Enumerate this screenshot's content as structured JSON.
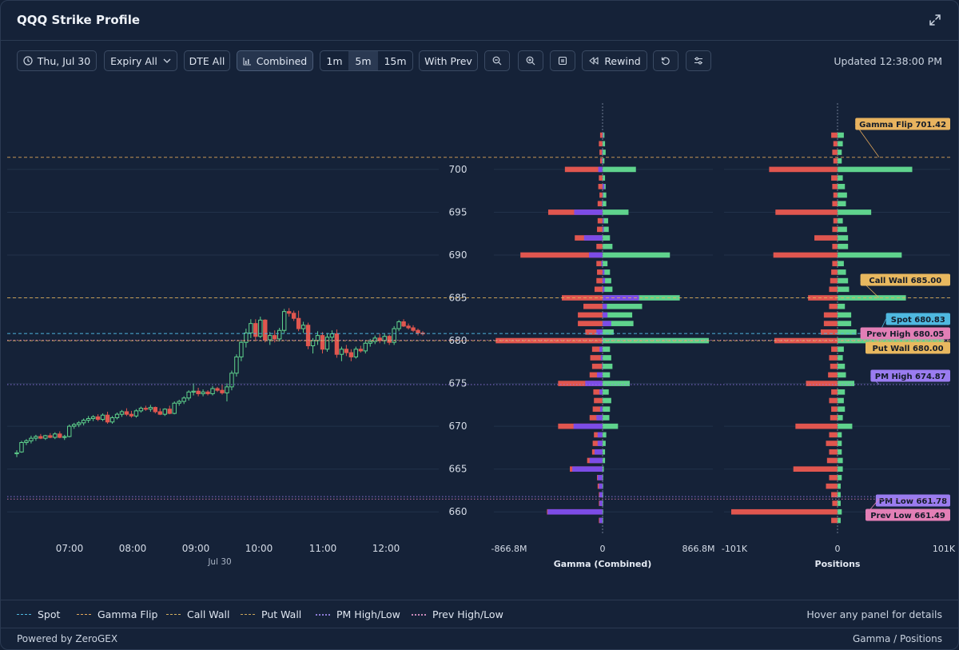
{
  "app": {
    "title": "QQQ Strike Profile"
  },
  "toolbar": {
    "date_label": "Thu, Jul 30",
    "expiry_label": "Expiry All",
    "dte_label": "DTE All",
    "combined_label": "Combined",
    "intervals": [
      "1m",
      "5m",
      "15m"
    ],
    "selected_interval": "5m",
    "with_prev_label": "With Prev",
    "rewind_label": "Rewind",
    "updated_label": "Updated 12:38:00 PM"
  },
  "colors": {
    "background": "#152238",
    "bull": "#5fd38d",
    "bear": "#e0564f",
    "combined": "#7c4ce6",
    "spot": "#4fb8e0",
    "gamma_flip": "#e4a85a",
    "call_wall": "#e4b35a",
    "put_wall": "#e4b35a",
    "pm": "#9a7cf0",
    "prev": "#e27fb6"
  },
  "chart_data": [
    {
      "type": "candlestick",
      "x_ticks": [
        "07:00",
        "08:00",
        "09:00",
        "10:00",
        "11:00",
        "12:00"
      ],
      "x_sublabel": "Jul 30",
      "ylim": [
        657.5,
        705.5
      ],
      "y_ticks": [
        700,
        695,
        690,
        685,
        680,
        675,
        670,
        665,
        660
      ],
      "candles": [
        [
          666.8,
          667.2,
          666.4,
          666.9
        ],
        [
          667.0,
          668.3,
          666.9,
          668.1
        ],
        [
          668.1,
          668.5,
          667.8,
          668.3
        ],
        [
          668.3,
          668.9,
          668.0,
          668.6
        ],
        [
          668.6,
          669.0,
          668.3,
          668.8
        ],
        [
          668.8,
          669.1,
          668.5,
          668.6
        ],
        [
          668.6,
          669.0,
          668.4,
          668.9
        ],
        [
          668.9,
          669.2,
          668.6,
          668.7
        ],
        [
          668.7,
          669.3,
          668.5,
          669.1
        ],
        [
          669.1,
          669.4,
          668.6,
          668.7
        ],
        [
          668.7,
          669.0,
          668.4,
          668.8
        ],
        [
          668.8,
          670.2,
          668.7,
          670.0
        ],
        [
          670.0,
          670.4,
          669.7,
          670.2
        ],
        [
          670.2,
          670.6,
          669.9,
          670.4
        ],
        [
          670.4,
          670.9,
          670.1,
          670.7
        ],
        [
          670.7,
          671.2,
          670.4,
          670.9
        ],
        [
          670.9,
          671.3,
          670.6,
          671.1
        ],
        [
          671.1,
          671.4,
          670.6,
          670.8
        ],
        [
          670.8,
          671.5,
          670.6,
          671.3
        ],
        [
          671.3,
          671.7,
          670.3,
          670.5
        ],
        [
          670.5,
          671.2,
          670.3,
          671.0
        ],
        [
          671.0,
          671.6,
          670.8,
          671.4
        ],
        [
          671.4,
          671.9,
          671.1,
          671.7
        ],
        [
          671.7,
          672.1,
          671.2,
          671.4
        ],
        [
          671.4,
          671.8,
          671.0,
          671.2
        ],
        [
          671.2,
          672.0,
          671.0,
          671.8
        ],
        [
          671.8,
          672.3,
          671.6,
          672.1
        ],
        [
          672.1,
          672.4,
          671.8,
          672.0
        ],
        [
          672.0,
          672.5,
          671.7,
          672.2
        ],
        [
          672.2,
          672.3,
          671.5,
          671.7
        ],
        [
          671.7,
          672.1,
          671.3,
          671.4
        ],
        [
          671.4,
          672.1,
          671.2,
          672.0
        ],
        [
          672.0,
          672.4,
          671.4,
          671.5
        ],
        [
          671.5,
          672.9,
          671.4,
          672.7
        ],
        [
          672.7,
          673.1,
          672.4,
          672.9
        ],
        [
          672.9,
          673.5,
          672.6,
          673.3
        ],
        [
          673.3,
          674.2,
          673.0,
          674.0
        ],
        [
          674.0,
          675.0,
          673.6,
          674.1
        ],
        [
          674.1,
          674.5,
          673.5,
          673.8
        ],
        [
          673.8,
          674.3,
          673.5,
          674.0
        ],
        [
          674.0,
          674.2,
          673.6,
          673.8
        ],
        [
          673.8,
          674.7,
          673.6,
          674.4
        ],
        [
          674.4,
          674.6,
          674.0,
          674.2
        ],
        [
          674.2,
          674.9,
          673.7,
          673.9
        ],
        [
          673.9,
          675.0,
          672.9,
          674.6
        ],
        [
          674.6,
          676.5,
          674.2,
          676.2
        ],
        [
          676.2,
          678.4,
          675.8,
          678.1
        ],
        [
          678.1,
          680.0,
          677.6,
          679.8
        ],
        [
          679.8,
          681.4,
          679.2,
          680.9
        ],
        [
          680.9,
          682.5,
          680.3,
          682.0
        ],
        [
          682.0,
          682.5,
          680.0,
          680.5
        ],
        [
          680.5,
          682.8,
          680.3,
          682.4
        ],
        [
          682.4,
          682.5,
          679.8,
          680.1
        ],
        [
          680.1,
          681.0,
          679.5,
          680.6
        ],
        [
          680.6,
          681.2,
          679.8,
          680.2
        ],
        [
          680.2,
          681.5,
          679.9,
          681.2
        ],
        [
          681.2,
          683.7,
          680.9,
          683.4
        ],
        [
          683.4,
          683.8,
          682.8,
          683.2
        ],
        [
          683.2,
          683.5,
          682.3,
          682.6
        ],
        [
          682.6,
          683.5,
          681.1,
          681.4
        ],
        [
          681.4,
          682.2,
          680.9,
          681.8
        ],
        [
          681.8,
          682.1,
          679.0,
          679.4
        ],
        [
          679.4,
          680.3,
          678.5,
          680.0
        ],
        [
          680.0,
          681.1,
          679.5,
          680.6
        ],
        [
          680.6,
          681.0,
          678.5,
          679.0
        ],
        [
          679.0,
          680.9,
          678.7,
          680.4
        ],
        [
          680.4,
          681.2,
          679.8,
          680.8
        ],
        [
          680.8,
          681.3,
          678.0,
          678.4
        ],
        [
          678.4,
          679.3,
          677.6,
          679.0
        ],
        [
          679.0,
          679.5,
          678.2,
          678.6
        ],
        [
          678.6,
          679.0,
          677.6,
          678.1
        ],
        [
          678.1,
          679.3,
          677.9,
          679.0
        ],
        [
          679.0,
          679.4,
          678.6,
          678.8
        ],
        [
          678.8,
          680.0,
          678.5,
          679.7
        ],
        [
          679.7,
          680.2,
          679.3,
          679.9
        ],
        [
          679.9,
          680.6,
          679.6,
          680.3
        ],
        [
          680.3,
          680.8,
          679.7,
          680.0
        ],
        [
          680.0,
          680.8,
          679.6,
          680.5
        ],
        [
          680.5,
          680.7,
          679.5,
          679.8
        ],
        [
          679.8,
          681.7,
          679.5,
          681.4
        ],
        [
          681.4,
          682.4,
          681.1,
          682.2
        ],
        [
          682.2,
          682.5,
          681.6,
          681.7
        ],
        [
          681.7,
          682.0,
          681.3,
          681.5
        ],
        [
          681.5,
          681.8,
          681.0,
          681.2
        ],
        [
          681.2,
          681.4,
          680.6,
          680.9
        ],
        [
          680.9,
          681.1,
          680.6,
          680.83
        ]
      ],
      "levels": [
        {
          "name": "Spot",
          "value": 680.83,
          "label": "Spot 680.83",
          "style": "dashed",
          "color": "#4fb8e0"
        },
        {
          "name": "Gamma Flip",
          "value": 701.42,
          "label": "Gamma Flip 701.42",
          "style": "dashed",
          "color": "#e4a85a"
        },
        {
          "name": "Call Wall",
          "value": 685.0,
          "label": "Call Wall 685.00",
          "style": "dashed",
          "color": "#e4b35a"
        },
        {
          "name": "Put Wall",
          "value": 680.0,
          "label": "Put Wall 680.00",
          "style": "dashed",
          "color": "#e4b35a"
        },
        {
          "name": "PM High",
          "value": 674.87,
          "label": "PM High 674.87",
          "style": "dotted",
          "color": "#9a7cf0"
        },
        {
          "name": "PM Low",
          "value": 661.78,
          "label": "PM Low 661.78",
          "style": "dotted",
          "color": "#9a7cf0"
        },
        {
          "name": "Prev High",
          "value": 680.05,
          "label": "Prev High 680.05",
          "style": "dotted",
          "color": "#e27fb6"
        },
        {
          "name": "Prev Low",
          "value": 661.49,
          "label": "Prev Low 661.49",
          "style": "dotted",
          "color": "#e27fb6"
        }
      ]
    },
    {
      "type": "bar",
      "orientation": "horizontal",
      "xlabel": "Gamma (Combined)",
      "x_ticks": [
        "-866.8M",
        "0",
        "866.8M"
      ],
      "xlim": [
        -866.8,
        866.8
      ],
      "units": "M",
      "strikes": [
        704,
        703,
        702,
        701,
        700,
        699,
        698,
        697,
        696,
        695,
        694,
        693,
        692,
        691,
        690,
        689,
        688,
        687,
        686,
        685,
        684,
        683,
        682,
        681,
        680,
        679,
        678,
        677,
        676,
        675,
        674,
        673,
        672,
        671,
        670,
        669,
        668,
        667,
        666,
        665,
        664,
        663,
        662,
        661,
        660,
        659
      ],
      "call": [
        15,
        20,
        25,
        15,
        270,
        20,
        25,
        30,
        30,
        210,
        45,
        50,
        60,
        80,
        545,
        40,
        60,
        70,
        80,
        625,
        320,
        240,
        250,
        90,
        860,
        60,
        70,
        80,
        60,
        220,
        50,
        70,
        60,
        55,
        125,
        30,
        25,
        20,
        20,
        10,
        5,
        5,
        5,
        5,
        5,
        5
      ],
      "put": [
        -20,
        -30,
        -25,
        -20,
        -305,
        -30,
        -35,
        -25,
        -40,
        -440,
        -40,
        -45,
        -225,
        -50,
        -665,
        -50,
        -45,
        -50,
        -65,
        -330,
        -155,
        -200,
        -200,
        -140,
        -865,
        -85,
        -100,
        -85,
        -105,
        -360,
        -75,
        -70,
        -80,
        -105,
        -360,
        -70,
        -80,
        -85,
        -125,
        -265,
        -45,
        -40,
        -30,
        -30,
        -450,
        -30
      ],
      "net": [
        5,
        0,
        -5,
        -5,
        -35,
        0,
        15,
        5,
        -5,
        -230,
        10,
        10,
        -150,
        0,
        -110,
        -10,
        15,
        20,
        15,
        295,
        35,
        40,
        70,
        -50,
        -5,
        -25,
        -15,
        -5,
        -45,
        -140,
        -25,
        0,
        -20,
        -50,
        -235,
        -40,
        -40,
        -65,
        -105,
        -245,
        -40,
        -30,
        -25,
        -25,
        -445,
        -25
      ]
    },
    {
      "type": "bar",
      "orientation": "horizontal",
      "xlabel": "Positions",
      "x_ticks": [
        "-101K",
        "0",
        "101K"
      ],
      "xlim": [
        -101,
        101
      ],
      "units": "K",
      "strikes": [
        704,
        703,
        702,
        701,
        700,
        699,
        698,
        697,
        696,
        695,
        694,
        693,
        692,
        691,
        690,
        689,
        688,
        687,
        686,
        685,
        684,
        683,
        682,
        681,
        680,
        679,
        678,
        677,
        676,
        675,
        674,
        673,
        672,
        671,
        670,
        669,
        668,
        667,
        666,
        665,
        664,
        663,
        662,
        661,
        660,
        659
      ],
      "call": [
        6,
        5,
        4,
        4,
        71,
        5,
        7,
        9,
        8,
        32,
        5,
        9,
        10,
        10,
        61,
        6,
        8,
        10,
        11,
        65,
        7,
        13,
        13,
        18,
        101,
        6,
        5,
        7,
        8,
        16,
        7,
        6,
        7,
        5,
        14,
        4,
        4,
        4,
        5,
        5,
        4,
        3,
        3,
        3,
        4,
        3
      ],
      "put": [
        -6,
        -4,
        -5,
        -4,
        -65,
        -6,
        -5,
        -4,
        -5,
        -59,
        -4,
        -5,
        -22,
        -5,
        -61,
        -5,
        -6,
        -7,
        -8,
        -28,
        -8,
        -13,
        -13,
        -16,
        -60,
        -6,
        -8,
        -7,
        -9,
        -30,
        -6,
        -8,
        -6,
        -7,
        -40,
        -8,
        -11,
        -8,
        -10,
        -42,
        -8,
        -11,
        -6,
        -5,
        -101,
        -6
      ]
    }
  ],
  "legend": {
    "items": [
      {
        "label": "Spot",
        "color": "#4fb8e0",
        "style": "dashed"
      },
      {
        "label": "Gamma Flip",
        "color": "#e4a85a",
        "style": "dashed"
      },
      {
        "label": "Call Wall",
        "color": "#d3b060",
        "style": "dashed"
      },
      {
        "label": "Put Wall",
        "color": "#c9a45a",
        "style": "dashed"
      },
      {
        "label": "PM High/Low",
        "color": "#8c7bd6",
        "style": "dotted"
      },
      {
        "label": "Prev High/Low",
        "color": "#c888b8",
        "style": "dotted"
      }
    ],
    "hint": "Hover any panel for details"
  },
  "footer": {
    "left": "Powered by ZeroGEX",
    "right": "Gamma / Positions"
  }
}
